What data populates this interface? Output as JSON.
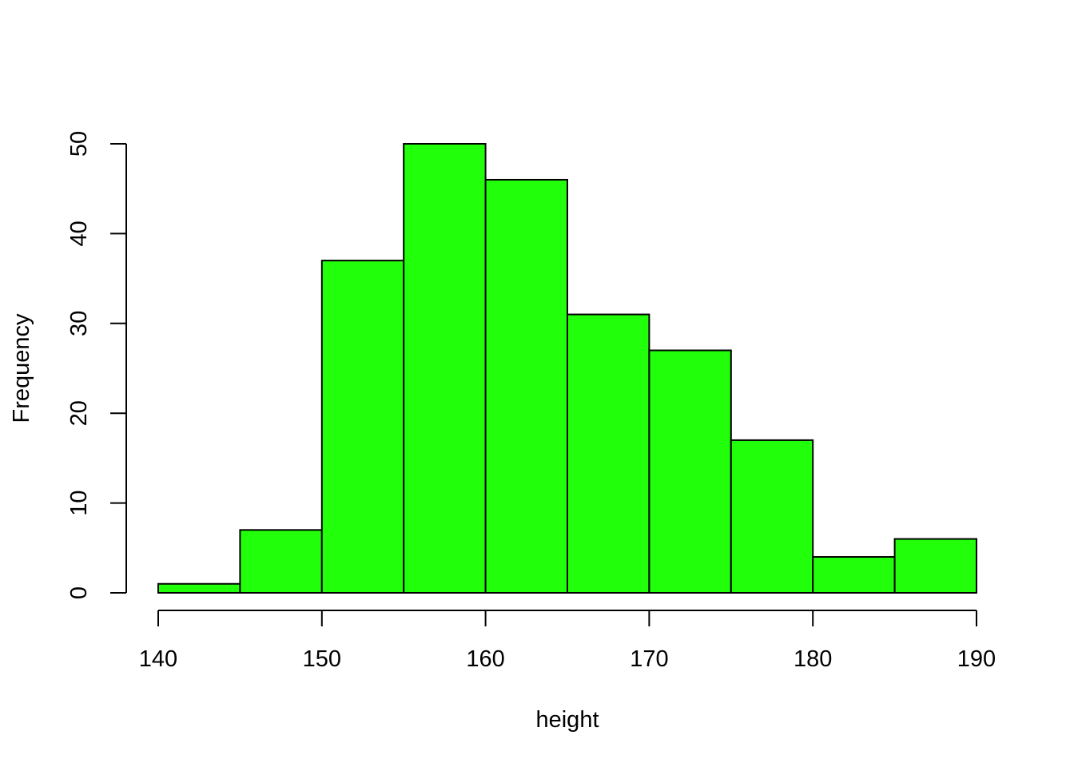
{
  "chart_data": {
    "type": "bar",
    "title": "",
    "xlabel": "height",
    "ylabel": "Frequency",
    "bins": [
      {
        "start": 140,
        "end": 145,
        "value": 1
      },
      {
        "start": 145,
        "end": 150,
        "value": 7
      },
      {
        "start": 150,
        "end": 155,
        "value": 37
      },
      {
        "start": 155,
        "end": 160,
        "value": 50
      },
      {
        "start": 160,
        "end": 165,
        "value": 46
      },
      {
        "start": 165,
        "end": 170,
        "value": 31
      },
      {
        "start": 170,
        "end": 175,
        "value": 27
      },
      {
        "start": 175,
        "end": 180,
        "value": 17
      },
      {
        "start": 180,
        "end": 185,
        "value": 4
      },
      {
        "start": 185,
        "end": 190,
        "value": 6
      }
    ],
    "xlim": [
      140,
      190
    ],
    "ylim": [
      0,
      50
    ],
    "xticks": [
      140,
      150,
      160,
      170,
      180,
      190
    ],
    "yticks": [
      0,
      10,
      20,
      30,
      40,
      50
    ],
    "xtick_labels": [
      "140",
      "150",
      "160",
      "170",
      "180",
      "190"
    ],
    "ytick_labels": [
      "0",
      "10",
      "20",
      "30",
      "40",
      "50"
    ],
    "grid": false,
    "legend": "none",
    "bar_color": "#22ff0b",
    "edge_color": "#000000"
  }
}
